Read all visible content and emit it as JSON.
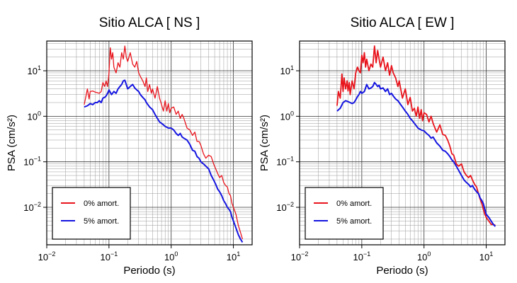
{
  "chart_data": [
    {
      "type": "line",
      "title": "Sitio ALCA [ NS ]",
      "xlabel": "Periodo (s)",
      "ylabel": "PSA (cm/s²)",
      "xscale": "log",
      "yscale": "log",
      "xlim": [
        0.01,
        20
      ],
      "ylim": [
        0.0015,
        45
      ],
      "xticks": [
        {
          "value": 0.01,
          "base": "10",
          "exp": "−2"
        },
        {
          "value": 0.1,
          "base": "10",
          "exp": "−1"
        },
        {
          "value": 1,
          "base": "10",
          "exp": "0"
        },
        {
          "value": 10,
          "base": "10",
          "exp": "1"
        }
      ],
      "yticks": [
        {
          "value": 0.01,
          "base": "10",
          "exp": "−2"
        },
        {
          "value": 0.1,
          "base": "10",
          "exp": "−1"
        },
        {
          "value": 1,
          "base": "10",
          "exp": "0"
        },
        {
          "value": 10,
          "base": "10",
          "exp": "1"
        }
      ],
      "grid": true,
      "legend": "bottom-left",
      "series": [
        {
          "name": "0% amort.",
          "color": "#e8141c",
          "x": [
            0.04,
            0.042,
            0.045,
            0.048,
            0.05,
            0.055,
            0.06,
            0.065,
            0.07,
            0.075,
            0.08,
            0.085,
            0.09,
            0.095,
            0.1,
            0.105,
            0.11,
            0.115,
            0.12,
            0.13,
            0.14,
            0.15,
            0.16,
            0.17,
            0.18,
            0.19,
            0.2,
            0.22,
            0.24,
            0.26,
            0.28,
            0.3,
            0.32,
            0.35,
            0.38,
            0.4,
            0.42,
            0.45,
            0.48,
            0.5,
            0.55,
            0.6,
            0.65,
            0.7,
            0.75,
            0.8,
            0.85,
            0.9,
            0.95,
            1.0,
            1.1,
            1.2,
            1.3,
            1.4,
            1.5,
            1.6,
            1.8,
            2.0,
            2.2,
            2.4,
            2.6,
            2.8,
            3.0,
            3.3,
            3.6,
            4.0,
            4.4,
            4.8,
            5.2,
            5.6,
            6.0,
            6.5,
            7.0,
            7.5,
            8.0,
            8.5,
            9.0,
            9.5,
            10,
            11,
            12,
            13,
            14
          ],
          "y": [
            1.8,
            2.5,
            4.0,
            2.4,
            3.5,
            3.6,
            3.4,
            3.3,
            3.2,
            3.5,
            5.5,
            4.5,
            6.0,
            4.5,
            9.0,
            32,
            18,
            25,
            12,
            9.0,
            15,
            12,
            25,
            18,
            35,
            20,
            16,
            25,
            14,
            12,
            16,
            9.0,
            7.5,
            6.0,
            4.5,
            7.0,
            3.5,
            5.0,
            3.2,
            4.0,
            2.5,
            4.5,
            2.5,
            1.8,
            1.3,
            2.2,
            1.3,
            1.9,
            1.2,
            1.5,
            1.6,
            1.1,
            1.3,
            0.9,
            1.1,
            0.9,
            0.55,
            0.5,
            0.38,
            0.45,
            0.28,
            0.28,
            0.23,
            0.15,
            0.12,
            0.14,
            0.13,
            0.09,
            0.07,
            0.055,
            0.045,
            0.05,
            0.035,
            0.03,
            0.028,
            0.02,
            0.018,
            0.012,
            0.01,
            0.007,
            0.004,
            0.0028,
            0.002
          ]
        },
        {
          "name": "5% amort.",
          "color": "#1414e0",
          "x": [
            0.04,
            0.045,
            0.05,
            0.055,
            0.06,
            0.065,
            0.07,
            0.075,
            0.08,
            0.085,
            0.09,
            0.095,
            0.1,
            0.11,
            0.12,
            0.13,
            0.14,
            0.15,
            0.16,
            0.17,
            0.18,
            0.19,
            0.2,
            0.22,
            0.24,
            0.26,
            0.28,
            0.3,
            0.32,
            0.35,
            0.38,
            0.4,
            0.45,
            0.5,
            0.55,
            0.6,
            0.65,
            0.7,
            0.75,
            0.8,
            0.9,
            1.0,
            1.1,
            1.2,
            1.3,
            1.4,
            1.5,
            1.6,
            1.8,
            2.0,
            2.2,
            2.4,
            2.6,
            2.8,
            3.0,
            3.3,
            3.6,
            4.0,
            4.4,
            4.8,
            5.2,
            5.6,
            6.0,
            6.5,
            7.0,
            7.5,
            8.0,
            8.5,
            9.0,
            9.5,
            10,
            11,
            12,
            13,
            14
          ],
          "y": [
            1.6,
            1.7,
            1.9,
            1.8,
            2.0,
            2.0,
            2.2,
            2.0,
            2.5,
            2.6,
            2.8,
            3.2,
            3.8,
            3.0,
            3.5,
            3.2,
            4.0,
            4.5,
            5.0,
            6.0,
            6.2,
            5.0,
            4.0,
            4.5,
            5.0,
            4.2,
            3.8,
            3.5,
            3.0,
            2.6,
            2.3,
            2.0,
            1.6,
            1.4,
            1.1,
            0.9,
            0.75,
            0.7,
            0.65,
            0.6,
            0.55,
            0.55,
            0.5,
            0.42,
            0.38,
            0.42,
            0.35,
            0.33,
            0.3,
            0.24,
            0.18,
            0.17,
            0.13,
            0.12,
            0.1,
            0.09,
            0.08,
            0.07,
            0.05,
            0.04,
            0.032,
            0.025,
            0.022,
            0.018,
            0.014,
            0.012,
            0.01,
            0.009,
            0.008,
            0.006,
            0.005,
            0.0035,
            0.0025,
            0.002,
            0.0017
          ]
        }
      ]
    },
    {
      "type": "line",
      "title": "Sitio ALCA [ EW ]",
      "xlabel": "Periodo (s)",
      "ylabel": "PSA (cm/s²)",
      "xscale": "log",
      "yscale": "log",
      "xlim": [
        0.01,
        20
      ],
      "ylim": [
        0.0015,
        45
      ],
      "xticks": [
        {
          "value": 0.01,
          "base": "10",
          "exp": "−2"
        },
        {
          "value": 0.1,
          "base": "10",
          "exp": "−1"
        },
        {
          "value": 1,
          "base": "10",
          "exp": "0"
        },
        {
          "value": 10,
          "base": "10",
          "exp": "1"
        }
      ],
      "yticks": [
        {
          "value": 0.01,
          "base": "10",
          "exp": "−2"
        },
        {
          "value": 0.1,
          "base": "10",
          "exp": "−1"
        },
        {
          "value": 1,
          "base": "10",
          "exp": "0"
        },
        {
          "value": 10,
          "base": "10",
          "exp": "1"
        }
      ],
      "grid": true,
      "legend": "bottom-left",
      "series": [
        {
          "name": "0% amort.",
          "color": "#e8141c",
          "x": [
            0.04,
            0.042,
            0.045,
            0.048,
            0.05,
            0.052,
            0.055,
            0.058,
            0.06,
            0.063,
            0.065,
            0.068,
            0.07,
            0.075,
            0.08,
            0.085,
            0.09,
            0.095,
            0.1,
            0.105,
            0.11,
            0.115,
            0.12,
            0.13,
            0.14,
            0.15,
            0.16,
            0.17,
            0.18,
            0.19,
            0.2,
            0.22,
            0.24,
            0.26,
            0.28,
            0.3,
            0.32,
            0.35,
            0.38,
            0.4,
            0.45,
            0.5,
            0.55,
            0.6,
            0.65,
            0.7,
            0.75,
            0.8,
            0.85,
            0.9,
            0.95,
            1.0,
            1.1,
            1.2,
            1.3,
            1.4,
            1.5,
            1.6,
            1.8,
            2.0,
            2.2,
            2.4,
            2.6,
            2.8,
            3.0,
            3.3,
            3.6,
            4.0,
            4.4,
            4.8,
            5.2,
            5.6,
            6.0,
            6.5,
            7.0,
            7.5,
            8.0,
            8.5,
            9.0,
            9.5,
            10,
            11,
            12,
            13,
            14
          ],
          "y": [
            1.7,
            3.5,
            2.5,
            8.5,
            3.5,
            7.0,
            4.0,
            6.0,
            3.6,
            5.5,
            3.0,
            4.5,
            6.0,
            4.0,
            9.0,
            12,
            10,
            9.0,
            22,
            15,
            25,
            12,
            18,
            10,
            14,
            12,
            35,
            15,
            28,
            18,
            12,
            20,
            10,
            15,
            8.0,
            13,
            9.0,
            7.0,
            4.5,
            6.0,
            2.5,
            4.0,
            1.8,
            2.6,
            1.3,
            1.5,
            1.0,
            1.6,
            0.9,
            1.4,
            0.8,
            1.2,
            1.1,
            0.75,
            1.0,
            0.7,
            0.55,
            0.45,
            0.65,
            0.4,
            0.38,
            0.3,
            0.22,
            0.15,
            0.14,
            0.09,
            0.08,
            0.09,
            0.06,
            0.05,
            0.045,
            0.05,
            0.04,
            0.032,
            0.028,
            0.02,
            0.015,
            0.012,
            0.009,
            0.007,
            0.006,
            0.005,
            0.0042,
            0.0042,
            0.004
          ]
        },
        {
          "name": "5% amort.",
          "color": "#1414e0",
          "x": [
            0.04,
            0.045,
            0.05,
            0.055,
            0.06,
            0.065,
            0.07,
            0.075,
            0.08,
            0.085,
            0.09,
            0.095,
            0.1,
            0.11,
            0.12,
            0.13,
            0.14,
            0.15,
            0.16,
            0.17,
            0.18,
            0.19,
            0.2,
            0.22,
            0.24,
            0.26,
            0.28,
            0.3,
            0.32,
            0.35,
            0.38,
            0.4,
            0.45,
            0.5,
            0.55,
            0.6,
            0.65,
            0.7,
            0.75,
            0.8,
            0.9,
            1.0,
            1.1,
            1.2,
            1.3,
            1.4,
            1.5,
            1.6,
            1.8,
            2.0,
            2.2,
            2.4,
            2.6,
            2.8,
            3.0,
            3.3,
            3.6,
            4.0,
            4.4,
            4.8,
            5.2,
            5.6,
            6.0,
            6.5,
            7.0,
            7.5,
            8.0,
            8.5,
            9.0,
            9.5,
            10,
            11,
            12,
            13,
            14
          ],
          "y": [
            1.3,
            1.5,
            2.0,
            2.2,
            2.1,
            2.0,
            1.9,
            2.0,
            2.3,
            2.7,
            3.0,
            3.5,
            3.2,
            3.5,
            5.0,
            4.0,
            4.2,
            4.5,
            5.5,
            5.0,
            4.5,
            4.8,
            4.0,
            4.2,
            3.5,
            4.0,
            3.0,
            3.2,
            2.8,
            2.4,
            2.2,
            2.0,
            1.6,
            1.3,
            1.1,
            0.9,
            0.8,
            0.7,
            0.62,
            0.55,
            0.5,
            0.48,
            0.42,
            0.38,
            0.33,
            0.35,
            0.3,
            0.26,
            0.22,
            0.18,
            0.17,
            0.15,
            0.13,
            0.11,
            0.1,
            0.08,
            0.065,
            0.05,
            0.04,
            0.035,
            0.032,
            0.028,
            0.03,
            0.025,
            0.022,
            0.02,
            0.016,
            0.014,
            0.012,
            0.009,
            0.007,
            0.006,
            0.005,
            0.0042,
            0.0038
          ]
        }
      ]
    }
  ]
}
